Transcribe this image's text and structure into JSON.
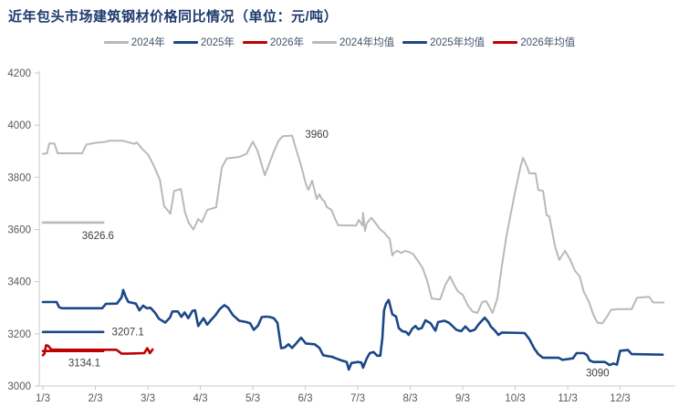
{
  "title": "近年包头市场建筑钢材价格同比情况（单位：元/吨）",
  "legend": [
    {
      "label": "2024年",
      "color": "#b9b9b9"
    },
    {
      "label": "2025年",
      "color": "#1b4788"
    },
    {
      "label": "2026年",
      "color": "#c00000"
    },
    {
      "label": "2024年均值",
      "color": "#b9b9b9"
    },
    {
      "label": "2025年均值",
      "color": "#1b4788"
    },
    {
      "label": "2026年均值",
      "color": "#c00000"
    }
  ],
  "chart_data": {
    "type": "line",
    "title": "近年包头市场建筑钢材价格同比情况（单位：元/吨）",
    "unit": "元/吨",
    "grid": false,
    "legend_position": "top",
    "axis_color": "#c8c8c8",
    "tick_label_color": "#595959",
    "annotation_color": "#404040",
    "y_axis": {
      "min": 3000,
      "max": 4200,
      "ticks": [
        4200,
        4000,
        3800,
        3600,
        3400,
        3200,
        3000
      ]
    },
    "x_axis": {
      "tick_labels": [
        "1/3",
        "2/3",
        "3/3",
        "4/3",
        "5/3",
        "6/3",
        "7/3",
        "8/3",
        "9/3",
        "10/3",
        "11/3",
        "12/3"
      ]
    },
    "series": [
      {
        "name": "2024年",
        "color": "#b9b9b9",
        "width": 2,
        "points": [
          [
            0,
            3890
          ],
          [
            0.08,
            3892
          ],
          [
            0.12,
            3930
          ],
          [
            0.22,
            3930
          ],
          [
            0.28,
            3892
          ],
          [
            0.75,
            3892
          ],
          [
            0.83,
            3926
          ],
          [
            1.0,
            3932
          ],
          [
            1.18,
            3936
          ],
          [
            1.27,
            3940
          ],
          [
            1.53,
            3940
          ],
          [
            1.74,
            3928
          ],
          [
            1.79,
            3934
          ],
          [
            1.84,
            3922
          ],
          [
            1.91,
            3905
          ],
          [
            2.0,
            3888
          ],
          [
            2.1,
            3850
          ],
          [
            2.23,
            3790
          ],
          [
            2.31,
            3690
          ],
          [
            2.43,
            3660
          ],
          [
            2.5,
            3748
          ],
          [
            2.63,
            3755
          ],
          [
            2.71,
            3665
          ],
          [
            2.78,
            3625
          ],
          [
            2.87,
            3600
          ],
          [
            2.96,
            3640
          ],
          [
            3.03,
            3628
          ],
          [
            3.13,
            3675
          ],
          [
            3.3,
            3685
          ],
          [
            3.41,
            3838
          ],
          [
            3.5,
            3872
          ],
          [
            3.74,
            3878
          ],
          [
            3.88,
            3890
          ],
          [
            4.0,
            3937
          ],
          [
            4.09,
            3902
          ],
          [
            4.23,
            3808
          ],
          [
            4.31,
            3850
          ],
          [
            4.4,
            3898
          ],
          [
            4.49,
            3940
          ],
          [
            4.57,
            3958
          ],
          [
            4.75,
            3960
          ],
          [
            4.82,
            3910
          ],
          [
            4.92,
            3845
          ],
          [
            5.01,
            3775
          ],
          [
            5.06,
            3752
          ],
          [
            5.13,
            3787
          ],
          [
            5.22,
            3717
          ],
          [
            5.27,
            3735
          ],
          [
            5.32,
            3715
          ],
          [
            5.36,
            3710
          ],
          [
            5.41,
            3686
          ],
          [
            5.5,
            3675
          ],
          [
            5.57,
            3640
          ],
          [
            5.63,
            3616
          ],
          [
            5.97,
            3615
          ],
          [
            6.02,
            3637
          ],
          [
            6.09,
            3615
          ],
          [
            6.1,
            3664
          ],
          [
            6.14,
            3594
          ],
          [
            6.17,
            3623
          ],
          [
            6.26,
            3645
          ],
          [
            6.37,
            3616
          ],
          [
            6.43,
            3600
          ],
          [
            6.5,
            3588
          ],
          [
            6.61,
            3563
          ],
          [
            6.66,
            3500
          ],
          [
            6.7,
            3512
          ],
          [
            6.75,
            3518
          ],
          [
            6.83,
            3510
          ],
          [
            6.9,
            3518
          ],
          [
            7.0,
            3512
          ],
          [
            7.06,
            3505
          ],
          [
            7.23,
            3455
          ],
          [
            7.32,
            3406
          ],
          [
            7.41,
            3335
          ],
          [
            7.57,
            3332
          ],
          [
            7.67,
            3388
          ],
          [
            7.76,
            3420
          ],
          [
            7.83,
            3390
          ],
          [
            7.91,
            3362
          ],
          [
            8.0,
            3350
          ],
          [
            8.1,
            3308
          ],
          [
            8.19,
            3285
          ],
          [
            8.28,
            3280
          ],
          [
            8.37,
            3322
          ],
          [
            8.45,
            3325
          ],
          [
            8.57,
            3280
          ],
          [
            8.66,
            3336
          ],
          [
            8.75,
            3465
          ],
          [
            8.83,
            3570
          ],
          [
            8.92,
            3665
          ],
          [
            9.01,
            3756
          ],
          [
            9.1,
            3840
          ],
          [
            9.15,
            3875
          ],
          [
            9.22,
            3843
          ],
          [
            9.27,
            3815
          ],
          [
            9.39,
            3815
          ],
          [
            9.44,
            3752
          ],
          [
            9.53,
            3748
          ],
          [
            9.6,
            3655
          ],
          [
            9.65,
            3650
          ],
          [
            9.76,
            3535
          ],
          [
            9.84,
            3483
          ],
          [
            9.95,
            3518
          ],
          [
            10.05,
            3483
          ],
          [
            10.14,
            3441
          ],
          [
            10.23,
            3420
          ],
          [
            10.31,
            3360
          ],
          [
            10.4,
            3325
          ],
          [
            10.49,
            3273
          ],
          [
            10.57,
            3242
          ],
          [
            10.66,
            3240
          ],
          [
            10.75,
            3266
          ],
          [
            10.83,
            3292
          ],
          [
            10.97,
            3295
          ],
          [
            11.22,
            3295
          ],
          [
            11.32,
            3338
          ],
          [
            11.55,
            3342
          ],
          [
            11.63,
            3320
          ],
          [
            11.83,
            3320
          ]
        ]
      },
      {
        "name": "2025年",
        "color": "#1b4788",
        "width": 2.6,
        "points": [
          [
            0,
            3322
          ],
          [
            0.26,
            3322
          ],
          [
            0.31,
            3302
          ],
          [
            0.36,
            3298
          ],
          [
            1.13,
            3298
          ],
          [
            1.2,
            3315
          ],
          [
            1.41,
            3316
          ],
          [
            1.5,
            3340
          ],
          [
            1.53,
            3368
          ],
          [
            1.58,
            3340
          ],
          [
            1.63,
            3322
          ],
          [
            1.77,
            3316
          ],
          [
            1.84,
            3290
          ],
          [
            1.91,
            3308
          ],
          [
            1.98,
            3298
          ],
          [
            2.05,
            3300
          ],
          [
            2.14,
            3280
          ],
          [
            2.21,
            3258
          ],
          [
            2.33,
            3243
          ],
          [
            2.42,
            3262
          ],
          [
            2.47,
            3286
          ],
          [
            2.57,
            3286
          ],
          [
            2.64,
            3265
          ],
          [
            2.7,
            3282
          ],
          [
            2.77,
            3260
          ],
          [
            2.85,
            3288
          ],
          [
            2.9,
            3290
          ],
          [
            2.96,
            3230
          ],
          [
            3.01,
            3245
          ],
          [
            3.06,
            3260
          ],
          [
            3.13,
            3235
          ],
          [
            3.2,
            3252
          ],
          [
            3.29,
            3272
          ],
          [
            3.37,
            3295
          ],
          [
            3.46,
            3310
          ],
          [
            3.53,
            3300
          ],
          [
            3.62,
            3272
          ],
          [
            3.74,
            3250
          ],
          [
            3.88,
            3245
          ],
          [
            3.95,
            3240
          ],
          [
            4.02,
            3215
          ],
          [
            4.1,
            3232
          ],
          [
            4.17,
            3264
          ],
          [
            4.26,
            3266
          ],
          [
            4.33,
            3264
          ],
          [
            4.4,
            3260
          ],
          [
            4.47,
            3242
          ],
          [
            4.54,
            3145
          ],
          [
            4.61,
            3148
          ],
          [
            4.68,
            3160
          ],
          [
            4.75,
            3146
          ],
          [
            4.82,
            3162
          ],
          [
            4.92,
            3185
          ],
          [
            5.01,
            3163
          ],
          [
            5.18,
            3160
          ],
          [
            5.27,
            3146
          ],
          [
            5.34,
            3118
          ],
          [
            5.44,
            3114
          ],
          [
            5.51,
            3112
          ],
          [
            5.58,
            3106
          ],
          [
            5.69,
            3098
          ],
          [
            5.79,
            3092
          ],
          [
            5.83,
            3063
          ],
          [
            5.88,
            3088
          ],
          [
            6.0,
            3092
          ],
          [
            6.07,
            3090
          ],
          [
            6.1,
            3070
          ],
          [
            6.17,
            3105
          ],
          [
            6.23,
            3126
          ],
          [
            6.3,
            3130
          ],
          [
            6.37,
            3116
          ],
          [
            6.43,
            3116
          ],
          [
            6.47,
            3185
          ],
          [
            6.5,
            3290
          ],
          [
            6.54,
            3316
          ],
          [
            6.59,
            3330
          ],
          [
            6.66,
            3275
          ],
          [
            6.73,
            3266
          ],
          [
            6.78,
            3222
          ],
          [
            6.85,
            3210
          ],
          [
            6.92,
            3207
          ],
          [
            6.97,
            3196
          ],
          [
            7.04,
            3220
          ],
          [
            7.1,
            3230
          ],
          [
            7.15,
            3218
          ],
          [
            7.22,
            3222
          ],
          [
            7.29,
            3252
          ],
          [
            7.39,
            3240
          ],
          [
            7.48,
            3212
          ],
          [
            7.53,
            3245
          ],
          [
            7.65,
            3250
          ],
          [
            7.74,
            3242
          ],
          [
            7.88,
            3215
          ],
          [
            7.97,
            3210
          ],
          [
            8.05,
            3228
          ],
          [
            8.14,
            3210
          ],
          [
            8.23,
            3216
          ],
          [
            8.31,
            3238
          ],
          [
            8.42,
            3262
          ],
          [
            8.49,
            3245
          ],
          [
            8.54,
            3227
          ],
          [
            8.61,
            3213
          ],
          [
            8.68,
            3196
          ],
          [
            8.75,
            3205
          ],
          [
            9.18,
            3203
          ],
          [
            9.27,
            3180
          ],
          [
            9.36,
            3145
          ],
          [
            9.44,
            3122
          ],
          [
            9.53,
            3108
          ],
          [
            9.83,
            3108
          ],
          [
            9.9,
            3100
          ],
          [
            10.1,
            3106
          ],
          [
            10.17,
            3126
          ],
          [
            10.31,
            3126
          ],
          [
            10.37,
            3118
          ],
          [
            10.42,
            3098
          ],
          [
            10.49,
            3092
          ],
          [
            10.71,
            3092
          ],
          [
            10.8,
            3080
          ],
          [
            10.87,
            3086
          ],
          [
            10.94,
            3082
          ],
          [
            11.0,
            3135
          ],
          [
            11.15,
            3138
          ],
          [
            11.22,
            3122
          ],
          [
            11.81,
            3120
          ]
        ]
      },
      {
        "name": "2026年",
        "color": "#c00000",
        "width": 2.6,
        "points": [
          [
            0,
            3118
          ],
          [
            0.03,
            3124
          ],
          [
            0.06,
            3156
          ],
          [
            0.1,
            3154
          ],
          [
            0.16,
            3140
          ],
          [
            0.35,
            3139
          ],
          [
            1.4,
            3139
          ],
          [
            1.5,
            3124
          ],
          [
            1.6,
            3124
          ],
          [
            1.93,
            3126
          ],
          [
            1.99,
            3145
          ],
          [
            2.04,
            3126
          ],
          [
            2.09,
            3140
          ]
        ]
      }
    ],
    "mean_lines": [
      {
        "name": "2024年均值",
        "value": 3626.6,
        "color": "#b9b9b9",
        "width": 2.6,
        "x_span": [
          0,
          1.15
        ]
      },
      {
        "name": "2025年均值",
        "value": 3207.1,
        "color": "#1b4788",
        "width": 2.6,
        "x_span": [
          0,
          1.15
        ]
      },
      {
        "name": "2026年均值",
        "value": 3134.1,
        "color": "#c00000",
        "width": 2.6,
        "x_span": [
          0,
          1.15
        ]
      }
    ],
    "annotations": [
      {
        "text": "3960",
        "x": 5.22,
        "y": 3966
      },
      {
        "text": "3626.6",
        "x": 1.05,
        "y": 3578
      },
      {
        "text": "3207.1",
        "x": 1.62,
        "y": 3209
      },
      {
        "text": "3134.1",
        "x": 0.79,
        "y": 3089
      },
      {
        "text": "3090",
        "x": 10.57,
        "y": 3050
      }
    ]
  }
}
